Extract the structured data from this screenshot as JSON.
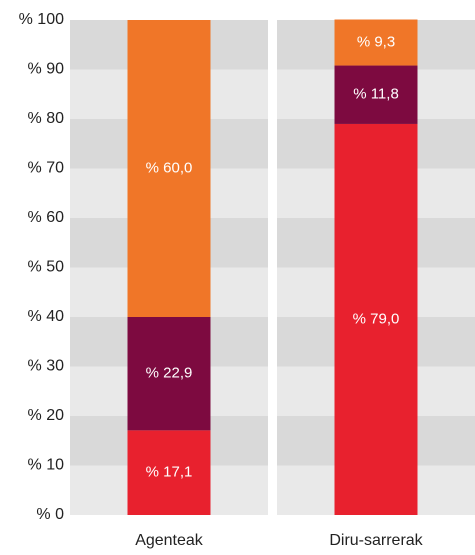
{
  "chart_data": {
    "type": "stacked_bar",
    "categories": [
      "Agenteak",
      "Diru-sarrerak"
    ],
    "series": [
      {
        "color": "#e8212e",
        "values": [
          17.1,
          79.0
        ],
        "value_labels": [
          "% 17,1",
          "% 79,0"
        ]
      },
      {
        "color": "#7d0a40",
        "values": [
          22.9,
          11.8
        ],
        "value_labels": [
          "% 22,9",
          "% 11,8"
        ]
      },
      {
        "color": "#f07628",
        "values": [
          60.0,
          9.3
        ],
        "value_labels": [
          "% 60,0",
          "% 9,3"
        ]
      }
    ],
    "ylim": [
      0,
      100
    ],
    "yticks": [
      {
        "value": 0,
        "label": "% 0"
      },
      {
        "value": 10,
        "label": "% 10"
      },
      {
        "value": 20,
        "label": "% 20"
      },
      {
        "value": 30,
        "label": "% 30"
      },
      {
        "value": 40,
        "label": "% 40"
      },
      {
        "value": 50,
        "label": "% 50"
      },
      {
        "value": 60,
        "label": "% 60"
      },
      {
        "value": 70,
        "label": "% 70"
      },
      {
        "value": 80,
        "label": "% 80"
      },
      {
        "value": 90,
        "label": "% 90"
      },
      {
        "value": 100,
        "label": "% 100"
      }
    ],
    "grid": true
  }
}
